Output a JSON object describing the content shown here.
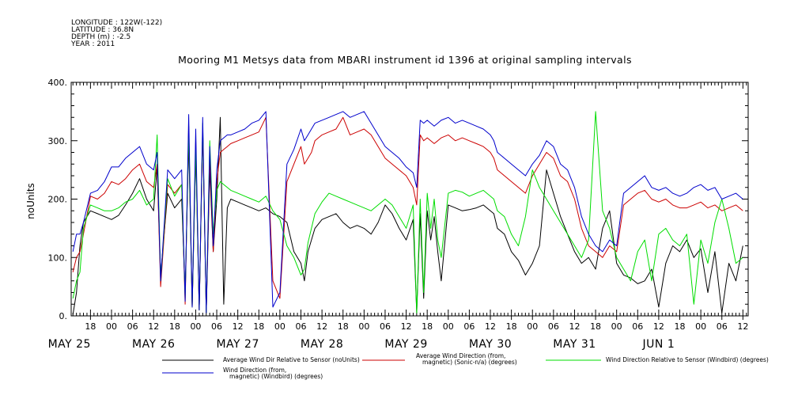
{
  "metadata": {
    "longitude": "LONGITUDE : 122W(-122)",
    "latitude": "LATITUDE : 36.8N",
    "depth": "DEPTH (m) : -2.5",
    "year": "YEAR : 2011"
  },
  "chart_data": {
    "type": "line",
    "title": "Mooring M1 Metsys data from MBARI instrument id 1396 at original sampling intervals",
    "ylabel": "noUnits",
    "xlabel": "",
    "ylim": [
      0,
      400
    ],
    "yticks": [
      "0.",
      "100.",
      "200.",
      "300.",
      "400."
    ],
    "x_hour_labels": [
      "18",
      "00",
      "06",
      "12",
      "18",
      "00",
      "06",
      "12",
      "18",
      "00",
      "06",
      "12",
      "18",
      "00",
      "06",
      "12",
      "18",
      "00",
      "06",
      "12",
      "18",
      "00",
      "06",
      "12",
      "18",
      "00",
      "06",
      "12",
      "18",
      "00",
      "06",
      "12"
    ],
    "x_day_labels": [
      "MAY 25",
      "MAY 26",
      "MAY 27",
      "MAY 28",
      "MAY 29",
      "MAY 30",
      "MAY 31",
      "JUN  1"
    ],
    "x_range_hours": [
      12.5,
      205.5
    ],
    "grid": false,
    "legend_placement": "bottom",
    "series": [
      {
        "name": "Average Wind Dir Relative to Sensor (noUnits)",
        "color": "#000000",
        "x": [
          13,
          14,
          15,
          16,
          18,
          20,
          22,
          24,
          26,
          28,
          30,
          32,
          34,
          36,
          37,
          38,
          40,
          42,
          44,
          45,
          46,
          47,
          48,
          49,
          50,
          51,
          52,
          53,
          54,
          55,
          56,
          57,
          58,
          60,
          62,
          64,
          66,
          68,
          70,
          72,
          74,
          76,
          78,
          79,
          80,
          81,
          82,
          84,
          86,
          88,
          90,
          92,
          94,
          96,
          98,
          100,
          102,
          104,
          106,
          108,
          110,
          111,
          112,
          113,
          114,
          115,
          116,
          117,
          118,
          120,
          122,
          124,
          126,
          128,
          130,
          131,
          132,
          133,
          134,
          136,
          138,
          140,
          142,
          144,
          146,
          148,
          150,
          152,
          154,
          156,
          158,
          160,
          162,
          164,
          166,
          168,
          170,
          172,
          174,
          176,
          178,
          180,
          182,
          184,
          186,
          188,
          190,
          192,
          194,
          196,
          198,
          200,
          202,
          204
        ],
        "y": [
          2,
          40,
          120,
          160,
          180,
          175,
          170,
          165,
          172,
          190,
          210,
          235,
          200,
          180,
          255,
          70,
          210,
          185,
          200,
          40,
          300,
          15,
          280,
          10,
          320,
          5,
          250,
          110,
          200,
          340,
          20,
          185,
          200,
          195,
          190,
          185,
          180,
          185,
          175,
          170,
          160,
          110,
          90,
          60,
          110,
          130,
          150,
          165,
          170,
          175,
          160,
          150,
          155,
          150,
          140,
          160,
          190,
          175,
          150,
          130,
          165,
          5,
          175,
          30,
          180,
          130,
          170,
          110,
          60,
          190,
          185,
          180,
          182,
          185,
          190,
          185,
          180,
          175,
          150,
          140,
          110,
          95,
          70,
          90,
          120,
          250,
          210,
          170,
          140,
          110,
          90,
          100,
          80,
          150,
          180,
          90,
          70,
          65,
          55,
          60,
          80,
          15,
          90,
          120,
          110,
          130,
          100,
          115,
          40,
          110,
          5,
          90,
          60,
          120
        ]
      },
      {
        "name": "Average Wind Direction (from, magnetic) (Sonic-n/a) (degrees)",
        "color": "#cc0000",
        "x": [
          13,
          14,
          15,
          16,
          18,
          20,
          22,
          24,
          26,
          28,
          30,
          32,
          34,
          36,
          37,
          38,
          40,
          42,
          44,
          45,
          46,
          47,
          48,
          49,
          50,
          51,
          52,
          53,
          54,
          55,
          56,
          57,
          58,
          60,
          62,
          64,
          66,
          68,
          70,
          72,
          74,
          76,
          78,
          79,
          80,
          81,
          82,
          84,
          86,
          88,
          90,
          92,
          94,
          96,
          98,
          100,
          102,
          104,
          106,
          108,
          110,
          111,
          112,
          113,
          114,
          115,
          116,
          117,
          118,
          120,
          122,
          124,
          126,
          128,
          130,
          131,
          132,
          133,
          134,
          136,
          138,
          140,
          142,
          144,
          146,
          148,
          150,
          152,
          154,
          156,
          158,
          160,
          162,
          164,
          166,
          168,
          170,
          172,
          174,
          176,
          178,
          180,
          182,
          184,
          186,
          188,
          190,
          192,
          194,
          196,
          198,
          200,
          202,
          204
        ],
        "y": [
          75,
          100,
          110,
          140,
          205,
          200,
          210,
          230,
          225,
          235,
          250,
          260,
          230,
          220,
          260,
          50,
          225,
          210,
          225,
          20,
          325,
          15,
          300,
          10,
          320,
          5,
          270,
          110,
          230,
          280,
          285,
          290,
          295,
          300,
          305,
          310,
          315,
          340,
          60,
          30,
          230,
          260,
          290,
          260,
          270,
          280,
          300,
          310,
          315,
          320,
          340,
          310,
          315,
          320,
          310,
          290,
          270,
          260,
          250,
          240,
          220,
          190,
          310,
          300,
          305,
          300,
          295,
          300,
          305,
          310,
          300,
          305,
          300,
          295,
          290,
          285,
          280,
          270,
          250,
          240,
          230,
          220,
          210,
          240,
          260,
          280,
          270,
          240,
          230,
          200,
          150,
          120,
          110,
          100,
          120,
          110,
          190,
          200,
          210,
          215,
          200,
          195,
          200,
          190,
          185,
          185,
          190,
          195,
          185,
          190,
          180,
          185,
          190,
          180
        ]
      },
      {
        "name": "Wind Direction Relative to Sensor (Windbird) (degrees)",
        "color": "#00dd00",
        "x": [
          13,
          14,
          15,
          16,
          18,
          20,
          22,
          24,
          26,
          28,
          30,
          32,
          34,
          36,
          37,
          38,
          40,
          42,
          44,
          45,
          46,
          47,
          48,
          49,
          50,
          51,
          52,
          53,
          54,
          55,
          56,
          57,
          58,
          60,
          62,
          64,
          66,
          68,
          70,
          72,
          74,
          76,
          78,
          79,
          80,
          81,
          82,
          84,
          86,
          88,
          90,
          92,
          94,
          96,
          98,
          100,
          102,
          104,
          106,
          108,
          110,
          111,
          112,
          113,
          114,
          115,
          116,
          117,
          118,
          120,
          122,
          124,
          126,
          128,
          130,
          131,
          132,
          133,
          134,
          136,
          138,
          140,
          142,
          144,
          146,
          148,
          150,
          152,
          154,
          156,
          158,
          160,
          162,
          164,
          166,
          168,
          170,
          172,
          174,
          176,
          178,
          180,
          182,
          184,
          186,
          188,
          190,
          192,
          194,
          196,
          198,
          200,
          202,
          204
        ],
        "y": [
          30,
          60,
          75,
          150,
          190,
          185,
          180,
          180,
          185,
          195,
          200,
          215,
          190,
          200,
          310,
          60,
          235,
          205,
          225,
          30,
          320,
          15,
          290,
          10,
          330,
          5,
          300,
          140,
          215,
          230,
          225,
          220,
          215,
          210,
          205,
          200,
          195,
          205,
          180,
          165,
          120,
          100,
          70,
          80,
          125,
          150,
          175,
          195,
          210,
          205,
          200,
          195,
          190,
          185,
          180,
          190,
          200,
          190,
          170,
          150,
          190,
          5,
          200,
          40,
          210,
          150,
          200,
          130,
          100,
          210,
          215,
          212,
          205,
          210,
          215,
          210,
          205,
          200,
          180,
          170,
          140,
          120,
          170,
          250,
          220,
          200,
          180,
          160,
          140,
          120,
          100,
          130,
          350,
          180,
          150,
          100,
          80,
          60,
          110,
          130,
          60,
          140,
          150,
          130,
          120,
          140,
          20,
          130,
          90,
          160,
          200,
          150,
          90,
          100
        ]
      },
      {
        "name": "Wind Direction (from, magnetic) (Windbird) (degrees)",
        "color": "#0000cc",
        "x": [
          13,
          14,
          15,
          16,
          18,
          20,
          22,
          24,
          26,
          28,
          30,
          32,
          34,
          36,
          37,
          38,
          40,
          42,
          44,
          45,
          46,
          47,
          48,
          49,
          50,
          51,
          52,
          53,
          54,
          55,
          56,
          57,
          58,
          60,
          62,
          64,
          66,
          68,
          70,
          72,
          74,
          76,
          78,
          79,
          80,
          81,
          82,
          84,
          86,
          88,
          90,
          92,
          94,
          96,
          98,
          100,
          102,
          104,
          106,
          108,
          110,
          111,
          112,
          113,
          114,
          115,
          116,
          117,
          118,
          120,
          122,
          124,
          126,
          128,
          130,
          131,
          132,
          133,
          134,
          136,
          138,
          140,
          142,
          144,
          146,
          148,
          150,
          152,
          154,
          156,
          158,
          160,
          162,
          164,
          166,
          168,
          170,
          172,
          174,
          176,
          178,
          180,
          182,
          184,
          186,
          188,
          190,
          192,
          194,
          196,
          198,
          200,
          202,
          204
        ],
        "y": [
          110,
          140,
          140,
          160,
          210,
          215,
          230,
          255,
          255,
          270,
          280,
          290,
          260,
          250,
          280,
          60,
          250,
          235,
          250,
          25,
          345,
          15,
          320,
          10,
          340,
          5,
          290,
          120,
          250,
          300,
          305,
          310,
          310,
          315,
          320,
          330,
          335,
          350,
          15,
          40,
          260,
          285,
          320,
          300,
          310,
          320,
          330,
          335,
          340,
          345,
          350,
          340,
          345,
          350,
          330,
          310,
          290,
          280,
          270,
          255,
          245,
          220,
          335,
          330,
          335,
          330,
          325,
          330,
          335,
          340,
          330,
          335,
          330,
          325,
          320,
          315,
          310,
          300,
          280,
          270,
          260,
          250,
          240,
          260,
          275,
          300,
          290,
          260,
          250,
          220,
          170,
          140,
          120,
          110,
          130,
          120,
          210,
          220,
          230,
          240,
          220,
          215,
          220,
          210,
          205,
          210,
          220,
          225,
          215,
          220,
          200,
          205,
          210,
          200
        ]
      }
    ]
  },
  "legend": [
    {
      "line1": "Average Wind Dir Relative to Sensor (noUnits)",
      "line2": "",
      "color": "#000000"
    },
    {
      "line1": "Average Wind Direction (from,",
      "line2": "magnetic) (Sonic-n/a) (degrees)",
      "color": "#cc0000"
    },
    {
      "line1": "Wind Direction Relative to Sensor (Windbird) (degrees)",
      "line2": "",
      "color": "#00dd00"
    },
    {
      "line1": "Wind Direction (from,",
      "line2": "magnetic) (Windbird) (degrees)",
      "color": "#0000cc"
    }
  ]
}
